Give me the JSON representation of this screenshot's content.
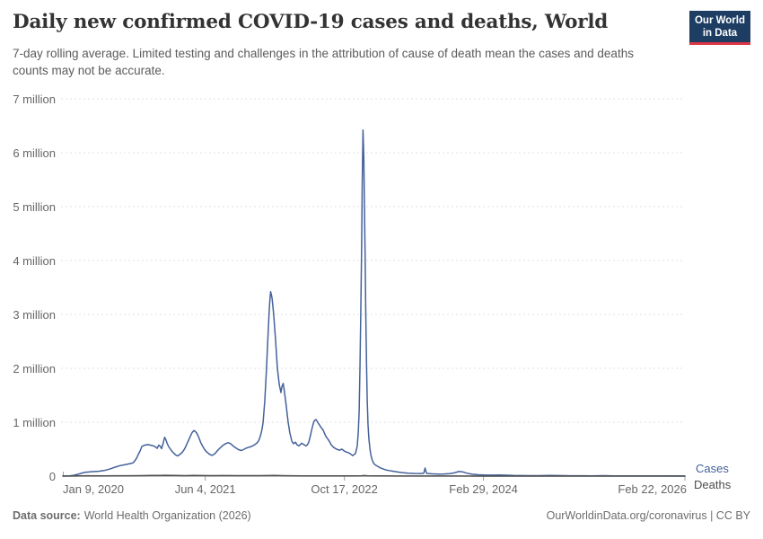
{
  "header": {
    "title": "Daily new confirmed COVID-19 cases and deaths, World",
    "subtitle": "7-day rolling average. Limited testing and challenges in the attribution of cause of death mean the cases and deaths counts may not be accurate.",
    "logo": {
      "line1": "Our World",
      "line2": "in Data",
      "bg_color": "#1d3d63",
      "accent_color": "#dc3545",
      "text_color": "#ffffff"
    }
  },
  "chart_data": {
    "type": "line",
    "title": "Daily new confirmed COVID-19 cases and deaths, World",
    "subtitle": "7-day rolling average. Limited testing and challenges in the attribution of cause of death mean the cases and deaths counts may not be accurate.",
    "grid": "horizontal dashed",
    "legend_position": "right of line ends",
    "x_axis": {
      "unit": "days since 2020-01-09",
      "start_date": "2020-01-09",
      "end_date": "2026-02-22",
      "ticks": [
        {
          "label": "Jan 9, 2020",
          "d": 0
        },
        {
          "label": "Jun 4, 2021",
          "d": 512
        },
        {
          "label": "Oct 17, 2022",
          "d": 1012
        },
        {
          "label": "Feb 29, 2024",
          "d": 1512
        },
        {
          "label": "Feb 22, 2026",
          "d": 2236
        }
      ]
    },
    "y_axis": {
      "min": 0,
      "max": 7,
      "unit": "million",
      "ticks": [
        {
          "label": "0",
          "v": 0
        },
        {
          "label": "1 million",
          "v": 1
        },
        {
          "label": "2 million",
          "v": 2
        },
        {
          "label": "3 million",
          "v": 3
        },
        {
          "label": "4 million",
          "v": 4
        },
        {
          "label": "5 million",
          "v": 5
        },
        {
          "label": "6 million",
          "v": 6
        },
        {
          "label": "7 million",
          "v": 7
        }
      ]
    },
    "series": [
      {
        "name": "Cases",
        "color": "#44619b",
        "unit": "million per day",
        "points": [
          [
            0,
            0.002
          ],
          [
            13,
            0.004
          ],
          [
            26,
            0.007
          ],
          [
            39,
            0.015
          ],
          [
            58,
            0.04
          ],
          [
            77,
            0.068
          ],
          [
            97,
            0.08
          ],
          [
            113,
            0.085
          ],
          [
            129,
            0.09
          ],
          [
            148,
            0.103
          ],
          [
            168,
            0.13
          ],
          [
            187,
            0.165
          ],
          [
            206,
            0.195
          ],
          [
            226,
            0.215
          ],
          [
            245,
            0.235
          ],
          [
            252,
            0.245
          ],
          [
            258,
            0.28
          ],
          [
            265,
            0.33
          ],
          [
            271,
            0.4
          ],
          [
            277,
            0.46
          ],
          [
            281,
            0.51
          ],
          [
            284,
            0.55
          ],
          [
            290,
            0.565
          ],
          [
            295,
            0.575
          ],
          [
            306,
            0.585
          ],
          [
            315,
            0.575
          ],
          [
            323,
            0.565
          ],
          [
            332,
            0.545
          ],
          [
            339,
            0.515
          ],
          [
            345,
            0.575
          ],
          [
            350,
            0.555
          ],
          [
            355,
            0.51
          ],
          [
            360,
            0.6
          ],
          [
            366,
            0.72
          ],
          [
            370,
            0.68
          ],
          [
            374,
            0.62
          ],
          [
            380,
            0.55
          ],
          [
            387,
            0.5
          ],
          [
            394,
            0.45
          ],
          [
            400,
            0.42
          ],
          [
            406,
            0.39
          ],
          [
            413,
            0.375
          ],
          [
            420,
            0.4
          ],
          [
            429,
            0.44
          ],
          [
            436,
            0.49
          ],
          [
            442,
            0.55
          ],
          [
            448,
            0.62
          ],
          [
            455,
            0.7
          ],
          [
            460,
            0.76
          ],
          [
            465,
            0.81
          ],
          [
            471,
            0.845
          ],
          [
            476,
            0.83
          ],
          [
            481,
            0.8
          ],
          [
            486,
            0.75
          ],
          [
            490,
            0.7
          ],
          [
            496,
            0.62
          ],
          [
            503,
            0.55
          ],
          [
            510,
            0.49
          ],
          [
            516,
            0.455
          ],
          [
            526,
            0.41
          ],
          [
            536,
            0.385
          ],
          [
            542,
            0.4
          ],
          [
            549,
            0.43
          ],
          [
            555,
            0.47
          ],
          [
            561,
            0.5
          ],
          [
            568,
            0.535
          ],
          [
            574,
            0.565
          ],
          [
            584,
            0.6
          ],
          [
            594,
            0.62
          ],
          [
            600,
            0.61
          ],
          [
            607,
            0.585
          ],
          [
            613,
            0.555
          ],
          [
            620,
            0.53
          ],
          [
            626,
            0.51
          ],
          [
            632,
            0.49
          ],
          [
            642,
            0.475
          ],
          [
            652,
            0.5
          ],
          [
            658,
            0.515
          ],
          [
            665,
            0.53
          ],
          [
            672,
            0.54
          ],
          [
            678,
            0.55
          ],
          [
            684,
            0.565
          ],
          [
            690,
            0.585
          ],
          [
            697,
            0.61
          ],
          [
            703,
            0.65
          ],
          [
            708,
            0.71
          ],
          [
            713,
            0.8
          ],
          [
            717,
            0.9
          ],
          [
            720,
            1.0
          ],
          [
            726,
            1.4
          ],
          [
            732,
            2.0
          ],
          [
            737,
            2.55
          ],
          [
            742,
            3.1
          ],
          [
            745,
            3.32
          ],
          [
            747,
            3.42
          ],
          [
            750,
            3.36
          ],
          [
            752,
            3.3
          ],
          [
            758,
            3.0
          ],
          [
            765,
            2.5
          ],
          [
            771,
            2.0
          ],
          [
            778,
            1.7
          ],
          [
            784,
            1.55
          ],
          [
            787,
            1.65
          ],
          [
            792,
            1.72
          ],
          [
            797,
            1.55
          ],
          [
            803,
            1.3
          ],
          [
            810,
            1.0
          ],
          [
            816,
            0.8
          ],
          [
            823,
            0.65
          ],
          [
            829,
            0.6
          ],
          [
            836,
            0.63
          ],
          [
            842,
            0.58
          ],
          [
            849,
            0.56
          ],
          [
            858,
            0.61
          ],
          [
            868,
            0.58
          ],
          [
            874,
            0.56
          ],
          [
            879,
            0.58
          ],
          [
            884,
            0.63
          ],
          [
            889,
            0.73
          ],
          [
            894,
            0.85
          ],
          [
            899,
            0.95
          ],
          [
            903,
            1.02
          ],
          [
            910,
            1.05
          ],
          [
            916,
            1.0
          ],
          [
            926,
            0.92
          ],
          [
            936,
            0.85
          ],
          [
            945,
            0.74
          ],
          [
            955,
            0.67
          ],
          [
            965,
            0.58
          ],
          [
            974,
            0.53
          ],
          [
            984,
            0.5
          ],
          [
            994,
            0.48
          ],
          [
            1003,
            0.5
          ],
          [
            1013,
            0.46
          ],
          [
            1023,
            0.44
          ],
          [
            1032,
            0.42
          ],
          [
            1042,
            0.38
          ],
          [
            1052,
            0.42
          ],
          [
            1058,
            0.55
          ],
          [
            1062,
            0.8
          ],
          [
            1065,
            1.2
          ],
          [
            1068,
            2.0
          ],
          [
            1071,
            3.0
          ],
          [
            1074,
            4.3
          ],
          [
            1076,
            5.4
          ],
          [
            1079,
            6.42
          ],
          [
            1082,
            5.9
          ],
          [
            1084,
            5.0
          ],
          [
            1087,
            3.9
          ],
          [
            1089,
            3.0
          ],
          [
            1092,
            2.0
          ],
          [
            1094,
            1.4
          ],
          [
            1097,
            0.95
          ],
          [
            1100,
            0.7
          ],
          [
            1104,
            0.5
          ],
          [
            1107,
            0.4
          ],
          [
            1112,
            0.3
          ],
          [
            1116,
            0.25
          ],
          [
            1122,
            0.21
          ],
          [
            1129,
            0.19
          ],
          [
            1137,
            0.165
          ],
          [
            1145,
            0.145
          ],
          [
            1153,
            0.13
          ],
          [
            1161,
            0.115
          ],
          [
            1171,
            0.105
          ],
          [
            1181,
            0.095
          ],
          [
            1200,
            0.08
          ],
          [
            1220,
            0.065
          ],
          [
            1242,
            0.055
          ],
          [
            1265,
            0.05
          ],
          [
            1284,
            0.048
          ],
          [
            1297,
            0.052
          ],
          [
            1300,
            0.1
          ],
          [
            1302,
            0.15
          ],
          [
            1305,
            0.09
          ],
          [
            1308,
            0.05
          ],
          [
            1330,
            0.042
          ],
          [
            1350,
            0.038
          ],
          [
            1370,
            0.04
          ],
          [
            1390,
            0.046
          ],
          [
            1407,
            0.06
          ],
          [
            1423,
            0.085
          ],
          [
            1436,
            0.08
          ],
          [
            1452,
            0.055
          ],
          [
            1471,
            0.035
          ],
          [
            1494,
            0.025
          ],
          [
            1516,
            0.02
          ],
          [
            1545,
            0.018
          ],
          [
            1568,
            0.022
          ],
          [
            1595,
            0.017
          ],
          [
            1620,
            0.012
          ],
          [
            1650,
            0.01
          ],
          [
            1680,
            0.008
          ],
          [
            1710,
            0.009
          ],
          [
            1749,
            0.012
          ],
          [
            1781,
            0.01
          ],
          [
            1823,
            0.007
          ],
          [
            1865,
            0.006
          ],
          [
            1904,
            0.005
          ],
          [
            1942,
            0.008
          ],
          [
            1981,
            0.005
          ],
          [
            2033,
            0.004
          ],
          [
            2097,
            0.003
          ],
          [
            2162,
            0.003
          ],
          [
            2236,
            0.002
          ]
        ]
      },
      {
        "name": "Deaths",
        "color": "#4d4d4d",
        "unit": "million per day",
        "points": [
          [
            0,
            0.0002
          ],
          [
            60,
            0.004
          ],
          [
            90,
            0.006
          ],
          [
            150,
            0.005
          ],
          [
            220,
            0.006
          ],
          [
            280,
            0.008
          ],
          [
            320,
            0.011
          ],
          [
            350,
            0.013
          ],
          [
            366,
            0.0145
          ],
          [
            400,
            0.011
          ],
          [
            440,
            0.009
          ],
          [
            470,
            0.012
          ],
          [
            500,
            0.01
          ],
          [
            540,
            0.009
          ],
          [
            580,
            0.01
          ],
          [
            620,
            0.008
          ],
          [
            660,
            0.008
          ],
          [
            700,
            0.008
          ],
          [
            740,
            0.01
          ],
          [
            760,
            0.011
          ],
          [
            790,
            0.009
          ],
          [
            820,
            0.007
          ],
          [
            860,
            0.005
          ],
          [
            900,
            0.004
          ],
          [
            950,
            0.0035
          ],
          [
            1000,
            0.003
          ],
          [
            1050,
            0.003
          ],
          [
            1075,
            0.006
          ],
          [
            1082,
            0.01
          ],
          [
            1095,
            0.007
          ],
          [
            1120,
            0.004
          ],
          [
            1160,
            0.003
          ],
          [
            1200,
            0.002
          ],
          [
            1300,
            0.0012
          ],
          [
            1400,
            0.001
          ],
          [
            1500,
            0.0008
          ],
          [
            1600,
            0.0006
          ],
          [
            1800,
            0.0004
          ],
          [
            2000,
            0.0003
          ],
          [
            2236,
            0.0002
          ]
        ]
      }
    ],
    "style": {
      "grid_color": "#e0e0e0",
      "axis_color": "#9e9e9e",
      "tick_label_color": "#666666"
    }
  },
  "footer": {
    "source_label": "Data source:",
    "source_value": "World Health Organization (2026)",
    "attribution": "OurWorldinData.org/coronavirus | CC BY"
  }
}
